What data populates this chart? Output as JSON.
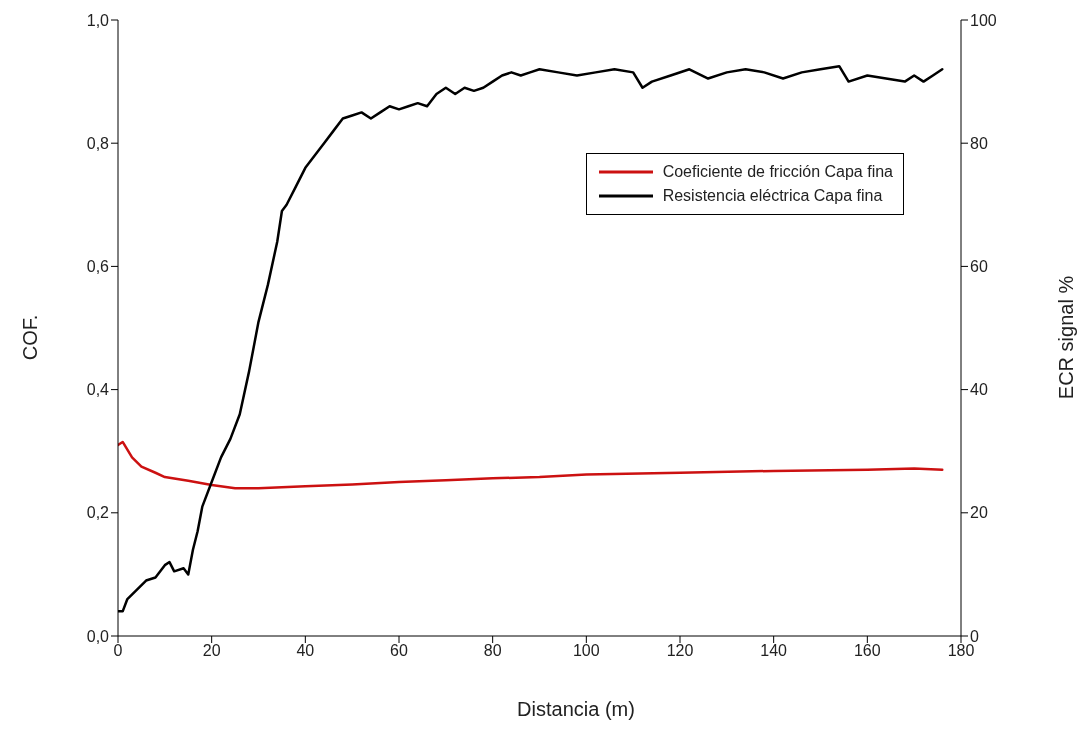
{
  "chart_data": {
    "type": "line",
    "xlabel": "Distancia (m)",
    "ylabel": "COF.",
    "y2label": "ECR signal %",
    "xlim": [
      0,
      180
    ],
    "xticks": [
      0,
      20,
      40,
      60,
      80,
      100,
      120,
      140,
      160,
      180
    ],
    "ylim": [
      0,
      1
    ],
    "yticks": [
      {
        "value": 0,
        "label": "0,0"
      },
      {
        "value": 0.2,
        "label": "0,2"
      },
      {
        "value": 0.4,
        "label": "0,4"
      },
      {
        "value": 0.6,
        "label": "0,6"
      },
      {
        "value": 0.8,
        "label": "0,8"
      },
      {
        "value": 1,
        "label": "1,0"
      }
    ],
    "y2lim": [
      0,
      100
    ],
    "y2ticks": [
      0,
      20,
      40,
      60,
      80,
      100
    ],
    "grid": false,
    "legend": "top right",
    "marker": "none",
    "line_style": "solid",
    "series": [
      {
        "name": "Coeficiente de fricción Capa fina",
        "color": "#cc1111",
        "x": [
          0,
          1,
          3,
          5,
          8,
          10,
          15,
          20,
          25,
          30,
          40,
          50,
          60,
          70,
          80,
          90,
          100,
          120,
          140,
          160,
          170,
          176
        ],
        "values": [
          0.31,
          0.315,
          0.29,
          0.275,
          0.265,
          0.258,
          0.252,
          0.245,
          0.24,
          0.24,
          0.243,
          0.246,
          0.25,
          0.253,
          0.256,
          0.258,
          0.262,
          0.265,
          0.268,
          0.27,
          0.272,
          0.27
        ]
      },
      {
        "name": "Resistencia eléctrica Capa fina",
        "color": "#000000",
        "axis": "y2",
        "x": [
          0,
          1,
          2,
          4,
          6,
          8,
          10,
          11,
          12,
          14,
          15,
          16,
          17,
          18,
          20,
          22,
          24,
          26,
          28,
          30,
          32,
          34,
          35,
          36,
          38,
          40,
          42,
          44,
          46,
          48,
          50,
          52,
          54,
          56,
          58,
          60,
          62,
          64,
          66,
          68,
          70,
          72,
          74,
          76,
          78,
          80,
          82,
          84,
          86,
          88,
          90,
          94,
          98,
          102,
          106,
          110,
          112,
          114,
          118,
          122,
          126,
          130,
          134,
          138,
          142,
          146,
          150,
          154,
          156,
          160,
          164,
          168,
          170,
          172,
          174,
          176
        ],
        "values": [
          4,
          4,
          6,
          7.5,
          9,
          9.5,
          11.5,
          12,
          10.5,
          11,
          10,
          14,
          17,
          21,
          25,
          29,
          32,
          36,
          43,
          51,
          57,
          64,
          69,
          70,
          73,
          76,
          78,
          80,
          82,
          84,
          84.5,
          85,
          84,
          85,
          86,
          85.5,
          86,
          86.5,
          86,
          88,
          89,
          88,
          89,
          88.5,
          89,
          90,
          91,
          91.5,
          91,
          91.5,
          92,
          91.5,
          91,
          91.5,
          92,
          91.5,
          89,
          90,
          91,
          92,
          90.5,
          91.5,
          92,
          91.5,
          90.5,
          91.5,
          92,
          92.5,
          90,
          91,
          90.5,
          90,
          91,
          90,
          91,
          92
        ]
      }
    ]
  }
}
